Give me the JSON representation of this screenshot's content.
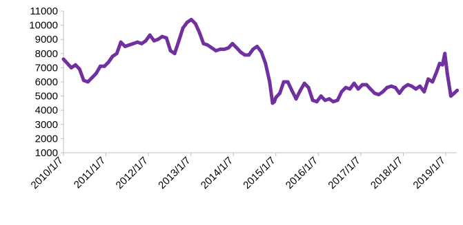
{
  "chart_data": {
    "type": "line",
    "title": "",
    "xlabel": "",
    "ylabel": "",
    "ylim": [
      1000,
      11000
    ],
    "yticks": [
      1000,
      2000,
      3000,
      4000,
      5000,
      6000,
      7000,
      8000,
      9000,
      10000,
      11000
    ],
    "xticks": [
      "2010/1/7",
      "2011/1/7",
      "2012/1/7",
      "2013/1/7",
      "2014/1/7",
      "2015/1/7",
      "2016/1/7",
      "2017/1/7",
      "2018/1/7",
      "2019/1/7"
    ],
    "grid": false,
    "legend": "none",
    "series_color": "#7030A0",
    "axis_color": "#BFBFBF",
    "series": [
      {
        "x": [
          "2010/1/7",
          "2010/2/10",
          "2010/3/15",
          "2010/4/20",
          "2010/5/25",
          "2010/6/30",
          "2010/8/5",
          "2010/9/10",
          "2010/10/15",
          "2010/11/20",
          "2010/12/25",
          "2011/1/30",
          "2011/3/5",
          "2011/4/10",
          "2011/5/15",
          "2011/6/20",
          "2011/7/25",
          "2011/8/30",
          "2011/10/5",
          "2011/11/10",
          "2011/12/15",
          "2012/1/20",
          "2012/2/25",
          "2012/3/30",
          "2012/5/5",
          "2012/6/10",
          "2012/7/15",
          "2012/8/20",
          "2012/9/25",
          "2012/10/30",
          "2012/12/5",
          "2013/1/10",
          "2013/2/15",
          "2013/3/20",
          "2013/4/25",
          "2013/5/30",
          "2013/7/5",
          "2013/8/10",
          "2013/9/15",
          "2013/10/20",
          "2013/11/25",
          "2013/12/30",
          "2014/2/5",
          "2014/3/10",
          "2014/4/15",
          "2014/5/20",
          "2014/6/25",
          "2014/7/30",
          "2014/9/5",
          "2014/10/10",
          "2014/11/15",
          "2014/12/10",
          "2014/12/25",
          "2015/1/7",
          "2015/2/10",
          "2015/3/15",
          "2015/4/20",
          "2015/5/25",
          "2015/6/30",
          "2015/8/5",
          "2015/9/10",
          "2015/10/15",
          "2015/11/20",
          "2015/12/25",
          "2016/1/30",
          "2016/3/5",
          "2016/4/10",
          "2016/5/15",
          "2016/6/20",
          "2016/7/25",
          "2016/8/30",
          "2016/10/5",
          "2016/11/10",
          "2016/12/15",
          "2017/1/20",
          "2017/2/25",
          "2017/3/30",
          "2017/5/5",
          "2017/6/10",
          "2017/7/15",
          "2017/8/20",
          "2017/9/25",
          "2017/10/30",
          "2017/12/5",
          "2018/1/10",
          "2018/2/15",
          "2018/3/20",
          "2018/4/25",
          "2018/5/30",
          "2018/7/5",
          "2018/8/10",
          "2018/9/15",
          "2018/10/20",
          "2018/11/15",
          "2018/12/10",
          "2018/12/30",
          "2019/1/20",
          "2019/2/20",
          "2019/3/20",
          "2019/4/15"
        ],
        "values": [
          7600,
          7300,
          7000,
          7200,
          6900,
          6100,
          6000,
          6300,
          6600,
          7100,
          7100,
          7400,
          7800,
          8000,
          8800,
          8500,
          8600,
          8700,
          8800,
          8700,
          8900,
          9300,
          8900,
          9000,
          9200,
          9100,
          8200,
          8000,
          8900,
          9800,
          10200,
          10400,
          10100,
          9500,
          8700,
          8600,
          8400,
          8200,
          8300,
          8300,
          8400,
          8700,
          8400,
          8100,
          7900,
          7900,
          8300,
          8500,
          8100,
          7300,
          6000,
          4500,
          4600,
          4900,
          5200,
          6000,
          6000,
          5400,
          4800,
          5400,
          5900,
          5600,
          4700,
          4600,
          5000,
          4700,
          4800,
          4600,
          4700,
          5300,
          5600,
          5500,
          5900,
          5500,
          5800,
          5800,
          5500,
          5200,
          5100,
          5300,
          5600,
          5700,
          5600,
          5200,
          5600,
          5800,
          5700,
          5500,
          5700,
          5300,
          6200,
          6000,
          6700,
          7300,
          7200,
          8000,
          6600,
          5000,
          5200,
          5400
        ]
      }
    ]
  }
}
